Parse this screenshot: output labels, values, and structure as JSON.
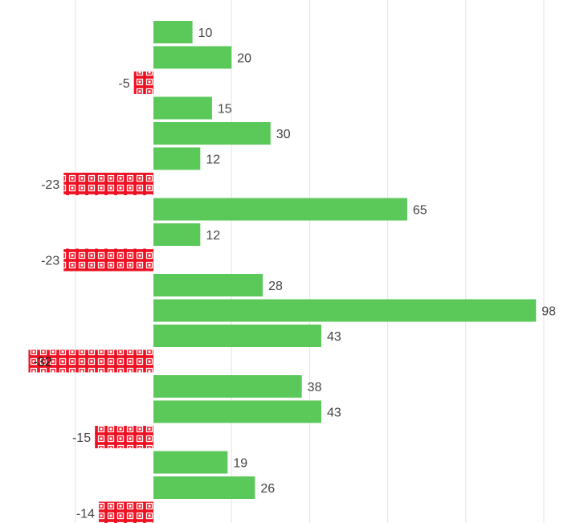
{
  "chart_data": {
    "type": "bar",
    "orientation": "horizontal",
    "values": [
      10,
      20,
      -5,
      15,
      30,
      12,
      -23,
      65,
      12,
      -23,
      28,
      98,
      43,
      -32,
      38,
      43,
      -15,
      19,
      26,
      -14
    ],
    "value_labels": [
      "10",
      "20",
      "-5",
      "15",
      "30",
      "12",
      "-23",
      "65",
      "12",
      "-23",
      "28",
      "98",
      "43",
      "-32",
      "38",
      "43",
      "-15",
      "19",
      "26",
      "-14"
    ],
    "xlim": [
      -40,
      100
    ],
    "grid": true,
    "legend": "none",
    "colors": {
      "positive": "#5bc85a",
      "negative": "#ee1122",
      "negative_pattern": "#ffffff",
      "grid": "#e3e3e3",
      "label": "#444444"
    }
  }
}
